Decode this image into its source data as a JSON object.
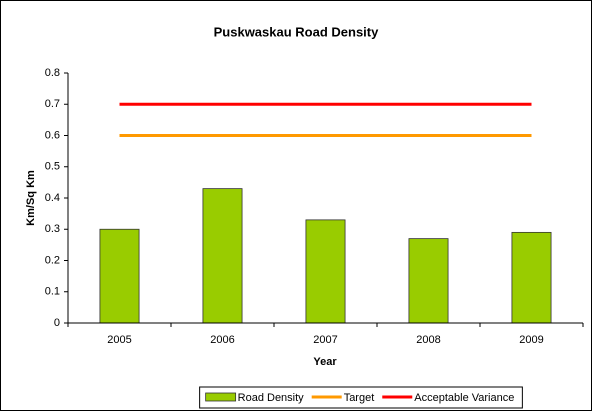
{
  "chart_data": {
    "type": "bar",
    "title": "Puskwaskau Road Density",
    "xlabel": "Year",
    "ylabel": "Km/Sq Km",
    "categories": [
      "2005",
      "2006",
      "2007",
      "2008",
      "2009"
    ],
    "series": [
      {
        "name": "Road Density",
        "type": "bar",
        "color": "#99cc00",
        "values": [
          0.3,
          0.43,
          0.33,
          0.27,
          0.29
        ]
      },
      {
        "name": "Target",
        "type": "line",
        "color": "#ff9900",
        "values": [
          0.6,
          0.6,
          0.6,
          0.6,
          0.6
        ]
      },
      {
        "name": "Acceptable Variance",
        "type": "line",
        "color": "#ff0000",
        "values": [
          0.7,
          0.7,
          0.7,
          0.7,
          0.7
        ]
      }
    ],
    "ylim": [
      0,
      0.8
    ],
    "yticks": [
      0,
      0.1,
      0.2,
      0.3,
      0.4,
      0.5,
      0.6,
      0.7,
      0.8
    ],
    "legend": "bottom"
  }
}
